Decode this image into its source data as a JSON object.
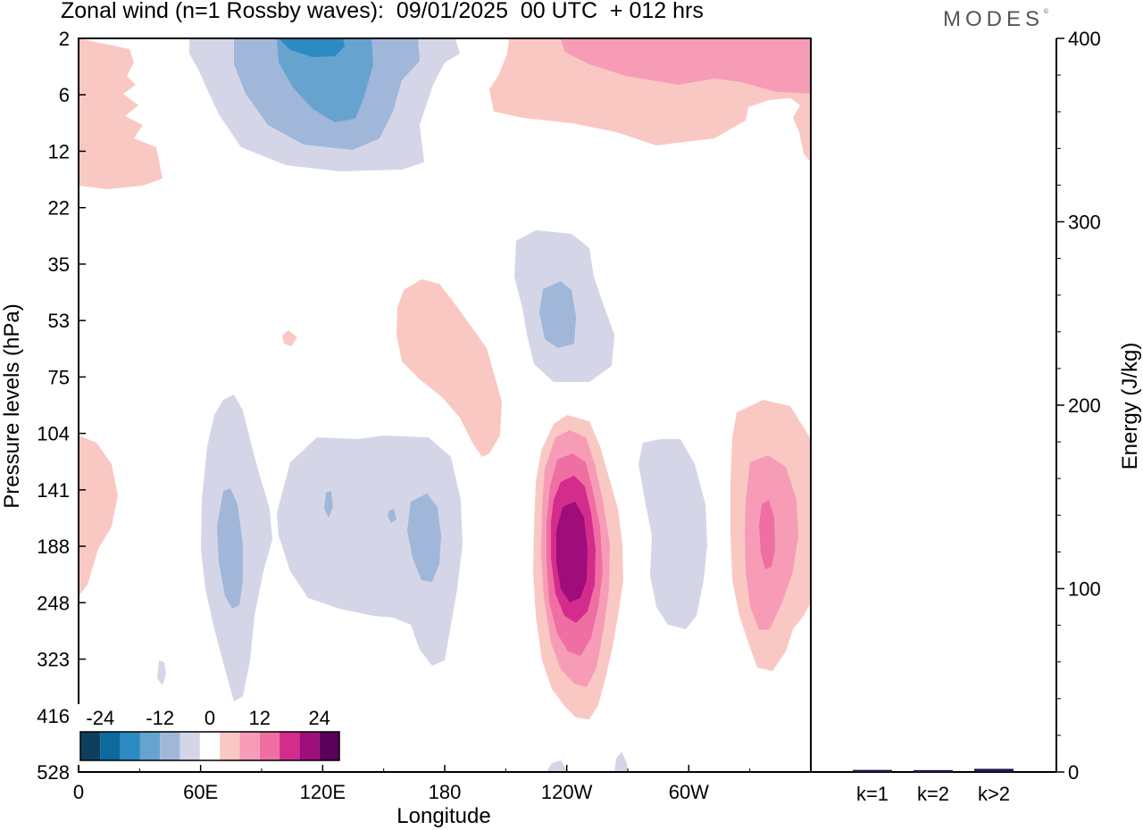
{
  "header": {
    "title": "Zonal wind (n=1 Rossby waves):  09/01/2025  00 UTC  + 012 hrs",
    "brand": "MODES",
    "brand_mark": "©"
  },
  "colorbar": {
    "labels": [
      "-24",
      "-12",
      "0",
      "12",
      "24"
    ],
    "colors": [
      "#0f3f5e",
      "#0e6a9c",
      "#2c8bc2",
      "#66a4cf",
      "#a0b7d9",
      "#d4d6e8",
      "#ffffff",
      "#fac8c3",
      "#f79cb7",
      "#ef6fa3",
      "#d42c8d",
      "#9e0d7a",
      "#5c0059"
    ]
  },
  "chart_data": [
    {
      "type": "heatmap",
      "title": "Zonal wind (n=1 Rossby waves):  09/01/2025  00 UTC  + 012 hrs",
      "xlabel": "Longitude",
      "ylabel": "Pressure levels (hPa)",
      "x_ticks": [
        "0",
        "60E",
        "120E",
        "180",
        "120W",
        "60W"
      ],
      "y_ticks": [
        "2",
        "6",
        "12",
        "22",
        "35",
        "53",
        "75",
        "104",
        "141",
        "188",
        "248",
        "323",
        "416",
        "528"
      ],
      "xlim": [
        0,
        360
      ],
      "contour_levels": [
        -24,
        -20,
        -16,
        -12,
        -8,
        -4,
        4,
        8,
        12,
        16,
        20,
        24
      ],
      "features": [
        {
          "lon": 75,
          "pressure": 188,
          "sign": "negative",
          "peak": -10
        },
        {
          "lon": 165,
          "pressure": 188,
          "sign": "negative",
          "peak": -10
        },
        {
          "lon": 120,
          "pressure": 3,
          "sign": "negative",
          "peak": -20
        },
        {
          "lon": 236,
          "pressure": 53,
          "sign": "negative",
          "peak": -10
        },
        {
          "lon": 239,
          "pressure": 188,
          "sign": "positive",
          "peak": 24
        },
        {
          "lon": 338,
          "pressure": 188,
          "sign": "positive",
          "peak": 14
        },
        {
          "lon": 280,
          "pressure": 3,
          "sign": "positive",
          "peak": 10
        }
      ]
    },
    {
      "type": "bar",
      "ylabel": "Energy (J/kg)",
      "ylim": [
        0,
        400
      ],
      "y_ticks": [
        "0",
        "100",
        "200",
        "300",
        "400"
      ],
      "categories": [
        "k=1",
        "k=2",
        "k>2"
      ],
      "values": [
        0.4,
        0.3,
        1.0
      ],
      "bar_colors": [
        "#1a1a4d",
        "#1a1a4d",
        "#1a1a4d"
      ]
    }
  ]
}
